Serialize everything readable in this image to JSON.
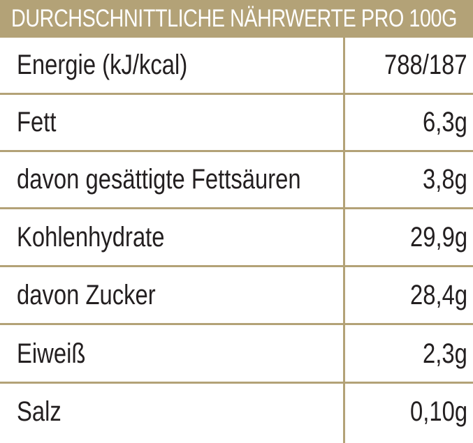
{
  "header": {
    "title": "DURCHSCHNITTLICHE NÄHRWERTE PRO 100G"
  },
  "rows": [
    {
      "label": "Energie (kJ/kcal)",
      "value": "788/187"
    },
    {
      "label": "Fett",
      "value": "6,3g"
    },
    {
      "label": "davon gesättigte Fettsäuren",
      "value": "3,8g"
    },
    {
      "label": "Kohlenhydrate",
      "value": "29,9g"
    },
    {
      "label": "davon Zucker",
      "value": "28,4g"
    },
    {
      "label": "Eiweiß",
      "value": "2,3g"
    },
    {
      "label": "Salz",
      "value": "0,10g"
    }
  ],
  "colors": {
    "accent": "#b3a277",
    "text": "#231f20",
    "background": "#ffffff"
  }
}
